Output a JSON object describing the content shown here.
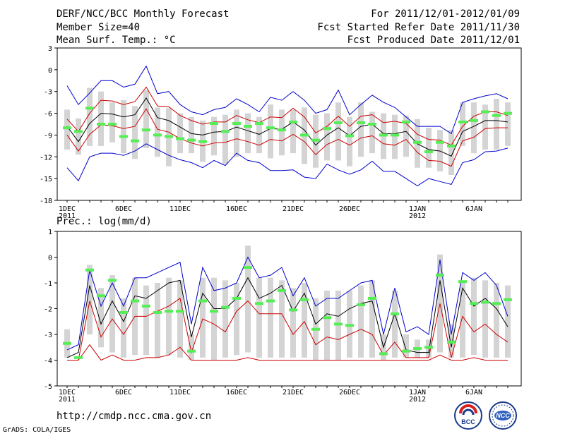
{
  "header": {
    "title": "DERF/NCC/BCC Monthly Forecast",
    "member_size": "Member Size=40",
    "variable": "Mean Surf. Temp.: °C",
    "period": "For 2011/12/01-2012/01/09",
    "started": "Fcst Started Refer Date 2011/11/30",
    "produced": "Fcst Produced Date 2011/12/01"
  },
  "footer": {
    "url": "http://cmdp.ncc.cma.gov.cn",
    "credit": "GrADS: COLA/IGES",
    "logo_bcc": "BCC",
    "logo_ncc": "NCC"
  },
  "colors": {
    "max_min": "#0000cc",
    "spread": "#cc0000",
    "mean": "#000000",
    "median": "#55ee55",
    "box": "#d4d4d4"
  },
  "chart_data": [
    {
      "type": "box",
      "title": "Mean Surf. Temp.: °C",
      "ylim": [
        -18,
        3
      ],
      "yticks": [
        3,
        0,
        -3,
        -6,
        -9,
        -12,
        -15,
        -18
      ],
      "x_tick_labels": [
        {
          "day": 1,
          "label": "1DEC",
          "sub": "2011"
        },
        {
          "day": 6,
          "label": "6DEC"
        },
        {
          "day": 11,
          "label": "11DEC"
        },
        {
          "day": 16,
          "label": "16DEC"
        },
        {
          "day": 21,
          "label": "21DEC"
        },
        {
          "day": 26,
          "label": "26DEC"
        },
        {
          "day": 32,
          "label": "1JAN",
          "sub": "2012"
        },
        {
          "day": 37,
          "label": "6JAN"
        }
      ],
      "days": [
        1,
        2,
        3,
        4,
        5,
        6,
        7,
        8,
        9,
        10,
        11,
        12,
        13,
        14,
        15,
        16,
        17,
        18,
        19,
        20,
        21,
        22,
        23,
        24,
        25,
        26,
        27,
        28,
        29,
        30,
        31,
        32,
        33,
        34,
        35,
        36,
        37,
        38,
        39,
        40
      ],
      "series": [
        {
          "name": "max",
          "values": [
            -2.2,
            -4.8,
            -3.2,
            -1.5,
            -1.5,
            -2.4,
            -2.0,
            0.5,
            -3.3,
            -3.0,
            -4.8,
            -5.8,
            -6.2,
            -5.5,
            -5.2,
            -4.0,
            -4.8,
            -5.8,
            -3.8,
            -4.2,
            -3.0,
            -4.2,
            -6.0,
            -5.5,
            -2.8,
            -6.2,
            -4.8,
            -3.5,
            -4.5,
            -5.2,
            -6.5,
            -7.8,
            -7.8,
            -7.8,
            -8.8,
            -4.5,
            -4.0,
            -3.6,
            -3.3,
            -4.0
          ]
        },
        {
          "name": "upper",
          "values": [
            -6.8,
            -8.5,
            -6.0,
            -4.2,
            -4.3,
            -4.8,
            -4.4,
            -2.4,
            -5.0,
            -5.1,
            -6.3,
            -7.0,
            -7.5,
            -7.2,
            -7.2,
            -6.3,
            -6.9,
            -7.3,
            -6.5,
            -6.6,
            -5.3,
            -6.5,
            -8.7,
            -7.8,
            -6.4,
            -7.8,
            -6.4,
            -6.2,
            -7.3,
            -7.1,
            -7.4,
            -8.9,
            -9.6,
            -9.7,
            -10.4,
            -7.8,
            -6.4,
            -5.8,
            -5.8,
            -6.3
          ]
        },
        {
          "name": "mean",
          "values": [
            -7.8,
            -9.9,
            -7.4,
            -6.0,
            -6.1,
            -6.5,
            -6.2,
            -3.9,
            -6.6,
            -7.0,
            -7.9,
            -8.8,
            -9.0,
            -8.6,
            -8.5,
            -7.9,
            -8.4,
            -8.9,
            -8.1,
            -8.2,
            -7.2,
            -8.3,
            -10.4,
            -9.0,
            -8.0,
            -9.1,
            -7.8,
            -7.5,
            -8.8,
            -8.8,
            -8.5,
            -10.2,
            -11.0,
            -11.2,
            -11.9,
            -8.5,
            -7.8,
            -7.0,
            -7.0,
            -7.2
          ]
        },
        {
          "name": "lower",
          "values": [
            -9.0,
            -11.2,
            -8.9,
            -7.6,
            -7.7,
            -8.1,
            -7.8,
            -5.4,
            -8.2,
            -8.6,
            -9.5,
            -10.1,
            -10.5,
            -10.1,
            -10.0,
            -9.5,
            -9.9,
            -10.4,
            -9.6,
            -9.8,
            -8.9,
            -9.9,
            -11.7,
            -10.3,
            -9.6,
            -10.4,
            -9.4,
            -9.1,
            -10.2,
            -10.4,
            -9.6,
            -11.4,
            -12.5,
            -12.6,
            -13.3,
            -9.8,
            -9.3,
            -8.1,
            -8.0,
            -8.0
          ]
        },
        {
          "name": "min",
          "values": [
            -13.5,
            -15.3,
            -12.0,
            -11.5,
            -11.5,
            -11.8,
            -11.2,
            -10.2,
            -11.0,
            -11.8,
            -12.4,
            -12.8,
            -13.5,
            -12.5,
            -13.2,
            -11.5,
            -12.5,
            -12.8,
            -13.9,
            -13.9,
            -13.8,
            -14.8,
            -15.0,
            -13.0,
            -13.8,
            -14.4,
            -13.8,
            -12.6,
            -14.0,
            -14.0,
            -15.0,
            -16.0,
            -15.0,
            -15.4,
            -15.8,
            -12.8,
            -12.4,
            -11.3,
            -11.2,
            -10.8
          ]
        },
        {
          "name": "median",
          "values": [
            -8.0,
            -8.5,
            -5.3,
            -7.5,
            -7.5,
            -9.2,
            -9.8,
            -8.3,
            -9.0,
            -9.2,
            -9.5,
            -9.7,
            -9.9,
            -7.4,
            -8.5,
            -7.4,
            -7.8,
            -7.4,
            -8.0,
            -8.3,
            -7.2,
            -9.0,
            -9.7,
            -8.1,
            -7.3,
            -9.1,
            -7.3,
            -7.5,
            -9.0,
            -9.0,
            -7.2,
            -10.0,
            -11.3,
            -10.0,
            -10.5,
            -7.2,
            -7.0,
            -5.8,
            -6.3,
            -6.0
          ]
        },
        {
          "name": "box_top",
          "values": [
            -5.5,
            -6.7,
            -2.5,
            -3.0,
            -4.5,
            -4.2,
            -5.0,
            -2.8,
            -5.2,
            -5.3,
            -6.0,
            -6.5,
            -7.0,
            -6.5,
            -6.2,
            -5.5,
            -6.0,
            -6.5,
            -4.8,
            -5.5,
            -5.5,
            -5.2,
            -6.2,
            -6.0,
            -4.5,
            -6.5,
            -4.5,
            -5.8,
            -6.0,
            -6.2,
            -6.3,
            -6.8,
            -8.0,
            -8.3,
            -8.3,
            -4.5,
            -4.5,
            -4.8,
            -4.0,
            -4.5
          ]
        },
        {
          "name": "box_bottom",
          "values": [
            -11.0,
            -11.7,
            -10.5,
            -10.5,
            -10.0,
            -11.5,
            -12.3,
            -10.8,
            -12.0,
            -13.3,
            -11.5,
            -11.5,
            -12.7,
            -11.8,
            -13.0,
            -12.0,
            -11.5,
            -11.5,
            -12.2,
            -11.8,
            -11.5,
            -13.0,
            -13.5,
            -12.5,
            -12.5,
            -13.3,
            -12.0,
            -11.5,
            -12.3,
            -12.3,
            -12.0,
            -13.5,
            -13.5,
            -14.0,
            -14.5,
            -10.5,
            -11.5,
            -11.0,
            -11.0,
            -10.5
          ]
        }
      ]
    },
    {
      "type": "box",
      "title": "Prec.: log(mm/d)",
      "ylim": [
        -5,
        1
      ],
      "yticks": [
        1,
        0,
        -1,
        -2,
        -3,
        -4,
        -5
      ],
      "x_tick_labels": [
        {
          "day": 1,
          "label": "1DEC",
          "sub": "2011"
        },
        {
          "day": 6,
          "label": "6DEC"
        },
        {
          "day": 11,
          "label": "11DEC"
        },
        {
          "day": 16,
          "label": "16DEC"
        },
        {
          "day": 21,
          "label": "21DEC"
        },
        {
          "day": 26,
          "label": "26DEC"
        },
        {
          "day": 32,
          "label": "1JAN",
          "sub": "2012"
        },
        {
          "day": 37,
          "label": "6JAN"
        }
      ],
      "days": [
        1,
        2,
        3,
        4,
        5,
        6,
        7,
        8,
        9,
        10,
        11,
        12,
        13,
        14,
        15,
        16,
        17,
        18,
        19,
        20,
        21,
        22,
        23,
        24,
        25,
        26,
        27,
        28,
        29,
        30,
        31,
        32,
        33,
        34,
        35,
        36,
        37,
        38,
        39,
        40
      ],
      "series": [
        {
          "name": "max",
          "values": [
            -3.6,
            -3.4,
            -0.5,
            -1.9,
            -1.0,
            -1.9,
            -0.8,
            -0.8,
            -0.6,
            -0.4,
            -0.2,
            -2.6,
            -0.4,
            -1.3,
            -1.2,
            -1.0,
            0.0,
            -0.8,
            -0.7,
            -0.4,
            -1.5,
            -0.8,
            -1.9,
            -1.6,
            -1.6,
            -1.3,
            -1.0,
            -0.9,
            -3.0,
            -1.2,
            -2.9,
            -2.7,
            -3.0,
            -0.1,
            -3.0,
            -0.6,
            -0.9,
            -0.6,
            -1.1,
            -2.3
          ]
        },
        {
          "name": "mean",
          "values": [
            -3.9,
            -3.7,
            -1.1,
            -2.6,
            -1.7,
            -2.5,
            -1.5,
            -1.6,
            -1.3,
            -1.0,
            -0.9,
            -3.1,
            -1.4,
            -2.0,
            -2.0,
            -1.6,
            -0.8,
            -1.6,
            -1.4,
            -1.1,
            -2.1,
            -1.4,
            -2.6,
            -2.2,
            -2.3,
            -2.0,
            -1.8,
            -1.7,
            -3.5,
            -2.2,
            -3.6,
            -3.7,
            -3.7,
            -0.9,
            -3.5,
            -1.2,
            -1.9,
            -1.6,
            -2.0,
            -2.7
          ]
        },
        {
          "name": "upper",
          "values": [
            -4.0,
            -4.0,
            -1.7,
            -3.1,
            -2.4,
            -3.0,
            -2.3,
            -2.3,
            -2.1,
            -1.9,
            -1.6,
            -3.7,
            -2.4,
            -2.6,
            -2.9,
            -2.1,
            -1.7,
            -2.2,
            -2.2,
            -2.2,
            -3.0,
            -2.5,
            -3.4,
            -3.1,
            -3.2,
            -3.0,
            -2.8,
            -3.0,
            -3.8,
            -3.3,
            -3.9,
            -3.9,
            -3.9,
            -1.8,
            -3.9,
            -2.3,
            -2.9,
            -2.6,
            -3.0,
            -3.3
          ]
        },
        {
          "name": "lower",
          "values": [
            -4.0,
            -4.0,
            -3.4,
            -4.0,
            -3.8,
            -4.0,
            -4.0,
            -3.9,
            -3.9,
            -3.8,
            -3.5,
            -4.0,
            -4.0,
            -4.0,
            -4.0,
            -4.0,
            -3.9,
            -4.0,
            -4.0,
            -4.0,
            -4.0,
            -4.0,
            -4.0,
            -4.0,
            -4.0,
            -4.0,
            -4.0,
            -4.0,
            -4.0,
            -4.0,
            -4.0,
            -4.0,
            -4.0,
            -3.8,
            -4.0,
            -4.0,
            -3.9,
            -4.0,
            -4.0,
            -4.0
          ]
        },
        {
          "name": "median",
          "values": [
            -3.35,
            -3.9,
            -0.5,
            -1.5,
            -0.9,
            -2.15,
            -1.7,
            -1.9,
            -2.15,
            -2.1,
            -2.1,
            -3.65,
            -1.7,
            -2.1,
            -1.95,
            -1.6,
            -0.4,
            -1.8,
            -1.7,
            -1.3,
            -2.05,
            -1.65,
            -2.8,
            -2.35,
            -2.6,
            -2.65,
            -1.85,
            -1.6,
            -3.75,
            -2.2,
            -3.65,
            -3.55,
            -3.5,
            -0.7,
            -3.3,
            -0.95,
            -1.8,
            -1.75,
            -1.8,
            -1.65
          ]
        },
        {
          "name": "box_top",
          "values": [
            -2.8,
            -4.0,
            -0.3,
            -1.2,
            -0.7,
            -1.6,
            -0.8,
            -1.1,
            -1.0,
            -0.8,
            -0.9,
            -3.0,
            -0.8,
            -0.8,
            -0.9,
            -1.0,
            0.45,
            -0.8,
            -0.8,
            -0.9,
            -1.2,
            -1.0,
            -1.6,
            -1.3,
            -1.3,
            -1.3,
            -1.1,
            -0.9,
            -3.0,
            -1.3,
            -3.0,
            -3.2,
            -3.2,
            0.1,
            -2.6,
            -1.0,
            -0.8,
            -0.9,
            -1.0,
            -1.1
          ]
        },
        {
          "name": "box_bottom",
          "values": [
            -3.9,
            -4.0,
            -3.0,
            -3.5,
            -3.7,
            -3.9,
            -3.8,
            -3.8,
            -3.9,
            -3.8,
            -3.9,
            -4.0,
            -3.9,
            -4.0,
            -3.9,
            -3.8,
            -3.7,
            -3.9,
            -3.9,
            -3.9,
            -3.9,
            -3.9,
            -4.0,
            -4.0,
            -4.0,
            -3.9,
            -3.9,
            -3.9,
            -4.0,
            -3.9,
            -3.9,
            -3.9,
            -3.9,
            -3.7,
            -3.9,
            -3.9,
            -3.8,
            -3.9,
            -3.9,
            -3.9
          ]
        }
      ]
    }
  ]
}
